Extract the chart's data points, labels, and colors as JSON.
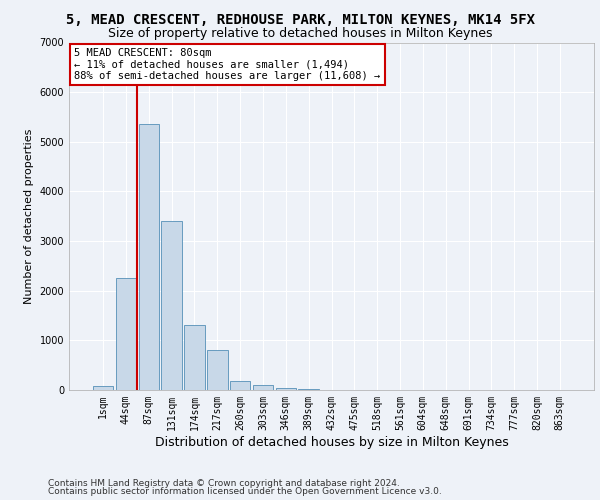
{
  "title": "5, MEAD CRESCENT, REDHOUSE PARK, MILTON KEYNES, MK14 5FX",
  "subtitle": "Size of property relative to detached houses in Milton Keynes",
  "xlabel": "Distribution of detached houses by size in Milton Keynes",
  "ylabel": "Number of detached properties",
  "footnote1": "Contains HM Land Registry data © Crown copyright and database right 2024.",
  "footnote2": "Contains public sector information licensed under the Open Government Licence v3.0.",
  "categories": [
    "1sqm",
    "44sqm",
    "87sqm",
    "131sqm",
    "174sqm",
    "217sqm",
    "260sqm",
    "303sqm",
    "346sqm",
    "389sqm",
    "432sqm",
    "475sqm",
    "518sqm",
    "561sqm",
    "604sqm",
    "648sqm",
    "691sqm",
    "734sqm",
    "777sqm",
    "820sqm",
    "863sqm"
  ],
  "values": [
    80,
    2250,
    5350,
    3400,
    1300,
    800,
    180,
    100,
    50,
    20,
    10,
    5,
    3,
    2,
    1,
    1,
    0,
    0,
    0,
    0,
    0
  ],
  "bar_color": "#c8d8e8",
  "bar_edge_color": "#5590b8",
  "highlight_line_color": "#cc0000",
  "annotation_text": "5 MEAD CRESCENT: 80sqm\n← 11% of detached houses are smaller (1,494)\n88% of semi-detached houses are larger (11,608) →",
  "annotation_box_color": "white",
  "annotation_box_edge_color": "#cc0000",
  "ylim": [
    0,
    7000
  ],
  "yticks": [
    0,
    1000,
    2000,
    3000,
    4000,
    5000,
    6000,
    7000
  ],
  "bg_color": "#eef2f8",
  "grid_color": "white",
  "title_fontsize": 10,
  "subtitle_fontsize": 9,
  "xlabel_fontsize": 9,
  "ylabel_fontsize": 8,
  "tick_fontsize": 7,
  "annotation_fontsize": 7.5,
  "footnote_fontsize": 6.5
}
